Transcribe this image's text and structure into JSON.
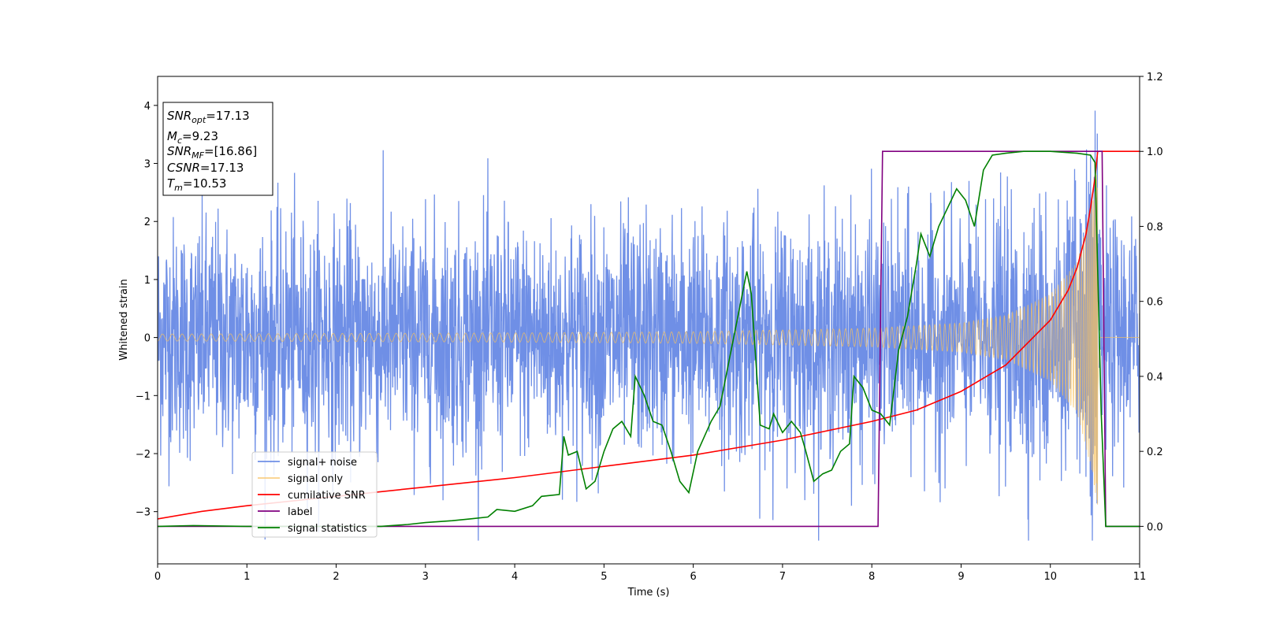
{
  "chart_data": {
    "type": "line",
    "xlabel": "Time (s)",
    "ylabel": "Whitened strain",
    "xlim": [
      0,
      11
    ],
    "ylim_left": [
      -3.9,
      4.5
    ],
    "ylim_right": [
      -0.1,
      1.2
    ],
    "x_ticks": [
      0,
      1,
      2,
      3,
      4,
      5,
      6,
      7,
      8,
      9,
      10,
      11
    ],
    "y_ticks_left": [
      -3,
      -2,
      -1,
      0,
      1,
      2,
      3,
      4
    ],
    "y_ticks_right": [
      0.0,
      0.2,
      0.4,
      0.6,
      0.8,
      1.0,
      1.2
    ],
    "y_tick_labels_left": [
      "−3",
      "−2",
      "−1",
      "0",
      "1",
      "2",
      "3",
      "4"
    ],
    "y_tick_labels_right": [
      "0.0",
      "0.2",
      "0.4",
      "0.6",
      "0.8",
      "1.0",
      "1.2"
    ],
    "legend_placement": "lower-left",
    "annotation": {
      "lines": [
        {
          "sym": "SNR",
          "sub": "opt",
          "val": "=17.13"
        },
        {
          "sym": "M",
          "sub": "c",
          "val": "=9.23"
        },
        {
          "sym": "SNR",
          "sub": "MF",
          "val": "=[16.86]"
        },
        {
          "sym": "CSNR",
          "sub": "",
          "val": "=17.13"
        },
        {
          "sym": "T",
          "sub": "m",
          "val": "=10.53"
        }
      ]
    },
    "series": [
      {
        "name": "signal+ noise",
        "axis": "left",
        "color": "#6f8fe6",
        "style": "noise",
        "noise_sigma": 1.0,
        "observed_range": [
          -3.5,
          4.2
        ]
      },
      {
        "name": "signal only",
        "axis": "left",
        "color": "#f7c15f",
        "style": "chirp",
        "merger_time": 10.53,
        "amplitude_envelope": [
          [
            0,
            0.06
          ],
          [
            2,
            0.07
          ],
          [
            4,
            0.08
          ],
          [
            6,
            0.1
          ],
          [
            8,
            0.16
          ],
          [
            9,
            0.25
          ],
          [
            9.5,
            0.38
          ],
          [
            10,
            0.75
          ],
          [
            10.3,
            1.3
          ],
          [
            10.45,
            2.2
          ],
          [
            10.53,
            2.9
          ],
          [
            10.55,
            0
          ]
        ]
      },
      {
        "name": "cumilative SNR",
        "axis": "right",
        "color": "#ff0000",
        "style": "line",
        "points": [
          [
            0,
            0.02
          ],
          [
            0.5,
            0.04
          ],
          [
            1,
            0.055
          ],
          [
            2,
            0.08
          ],
          [
            3,
            0.105
          ],
          [
            4,
            0.13
          ],
          [
            5,
            0.16
          ],
          [
            6,
            0.19
          ],
          [
            7,
            0.23
          ],
          [
            8,
            0.28
          ],
          [
            8.5,
            0.31
          ],
          [
            9,
            0.36
          ],
          [
            9.5,
            0.43
          ],
          [
            10,
            0.55
          ],
          [
            10.2,
            0.63
          ],
          [
            10.3,
            0.69
          ],
          [
            10.4,
            0.78
          ],
          [
            10.45,
            0.85
          ],
          [
            10.5,
            0.93
          ],
          [
            10.53,
            1.0
          ],
          [
            11,
            1.0
          ]
        ]
      },
      {
        "name": "label",
        "axis": "right",
        "color": "#800080",
        "style": "line",
        "points": [
          [
            0,
            0
          ],
          [
            8.07,
            0
          ],
          [
            8.12,
            1
          ],
          [
            10.58,
            1
          ],
          [
            10.62,
            0
          ],
          [
            11,
            0
          ]
        ]
      },
      {
        "name": "signal statistics",
        "axis": "right",
        "color": "#008000",
        "style": "line",
        "points": [
          [
            0,
            0.0
          ],
          [
            0.4,
            0.002
          ],
          [
            1,
            0.0
          ],
          [
            2,
            0.0
          ],
          [
            2.5,
            0.0
          ],
          [
            2.8,
            0.005
          ],
          [
            3,
            0.01
          ],
          [
            3.3,
            0.015
          ],
          [
            3.5,
            0.02
          ],
          [
            3.7,
            0.025
          ],
          [
            3.8,
            0.045
          ],
          [
            4,
            0.04
          ],
          [
            4.2,
            0.055
          ],
          [
            4.3,
            0.08
          ],
          [
            4.5,
            0.085
          ],
          [
            4.55,
            0.24
          ],
          [
            4.6,
            0.19
          ],
          [
            4.7,
            0.2
          ],
          [
            4.8,
            0.1
          ],
          [
            4.9,
            0.12
          ],
          [
            5.0,
            0.2
          ],
          [
            5.1,
            0.26
          ],
          [
            5.2,
            0.28
          ],
          [
            5.3,
            0.24
          ],
          [
            5.35,
            0.4
          ],
          [
            5.45,
            0.35
          ],
          [
            5.55,
            0.28
          ],
          [
            5.65,
            0.27
          ],
          [
            5.75,
            0.2
          ],
          [
            5.85,
            0.12
          ],
          [
            5.95,
            0.09
          ],
          [
            6.05,
            0.2
          ],
          [
            6.2,
            0.28
          ],
          [
            6.3,
            0.32
          ],
          [
            6.4,
            0.44
          ],
          [
            6.5,
            0.56
          ],
          [
            6.6,
            0.68
          ],
          [
            6.65,
            0.62
          ],
          [
            6.75,
            0.27
          ],
          [
            6.85,
            0.26
          ],
          [
            6.9,
            0.3
          ],
          [
            7.0,
            0.25
          ],
          [
            7.1,
            0.28
          ],
          [
            7.2,
            0.25
          ],
          [
            7.25,
            0.21
          ],
          [
            7.35,
            0.12
          ],
          [
            7.45,
            0.14
          ],
          [
            7.55,
            0.15
          ],
          [
            7.65,
            0.2
          ],
          [
            7.75,
            0.22
          ],
          [
            7.8,
            0.4
          ],
          [
            7.9,
            0.37
          ],
          [
            8.0,
            0.31
          ],
          [
            8.1,
            0.3
          ],
          [
            8.2,
            0.27
          ],
          [
            8.3,
            0.47
          ],
          [
            8.4,
            0.56
          ],
          [
            8.5,
            0.7
          ],
          [
            8.55,
            0.78
          ],
          [
            8.65,
            0.72
          ],
          [
            8.75,
            0.8
          ],
          [
            8.85,
            0.85
          ],
          [
            8.95,
            0.9
          ],
          [
            9.05,
            0.87
          ],
          [
            9.15,
            0.8
          ],
          [
            9.25,
            0.95
          ],
          [
            9.35,
            0.99
          ],
          [
            9.5,
            0.995
          ],
          [
            9.7,
            1.0
          ],
          [
            10.0,
            1.0
          ],
          [
            10.3,
            0.995
          ],
          [
            10.45,
            0.99
          ],
          [
            10.5,
            0.97
          ],
          [
            10.57,
            0.3
          ],
          [
            10.62,
            0.0
          ],
          [
            11,
            0.0
          ]
        ]
      }
    ]
  }
}
